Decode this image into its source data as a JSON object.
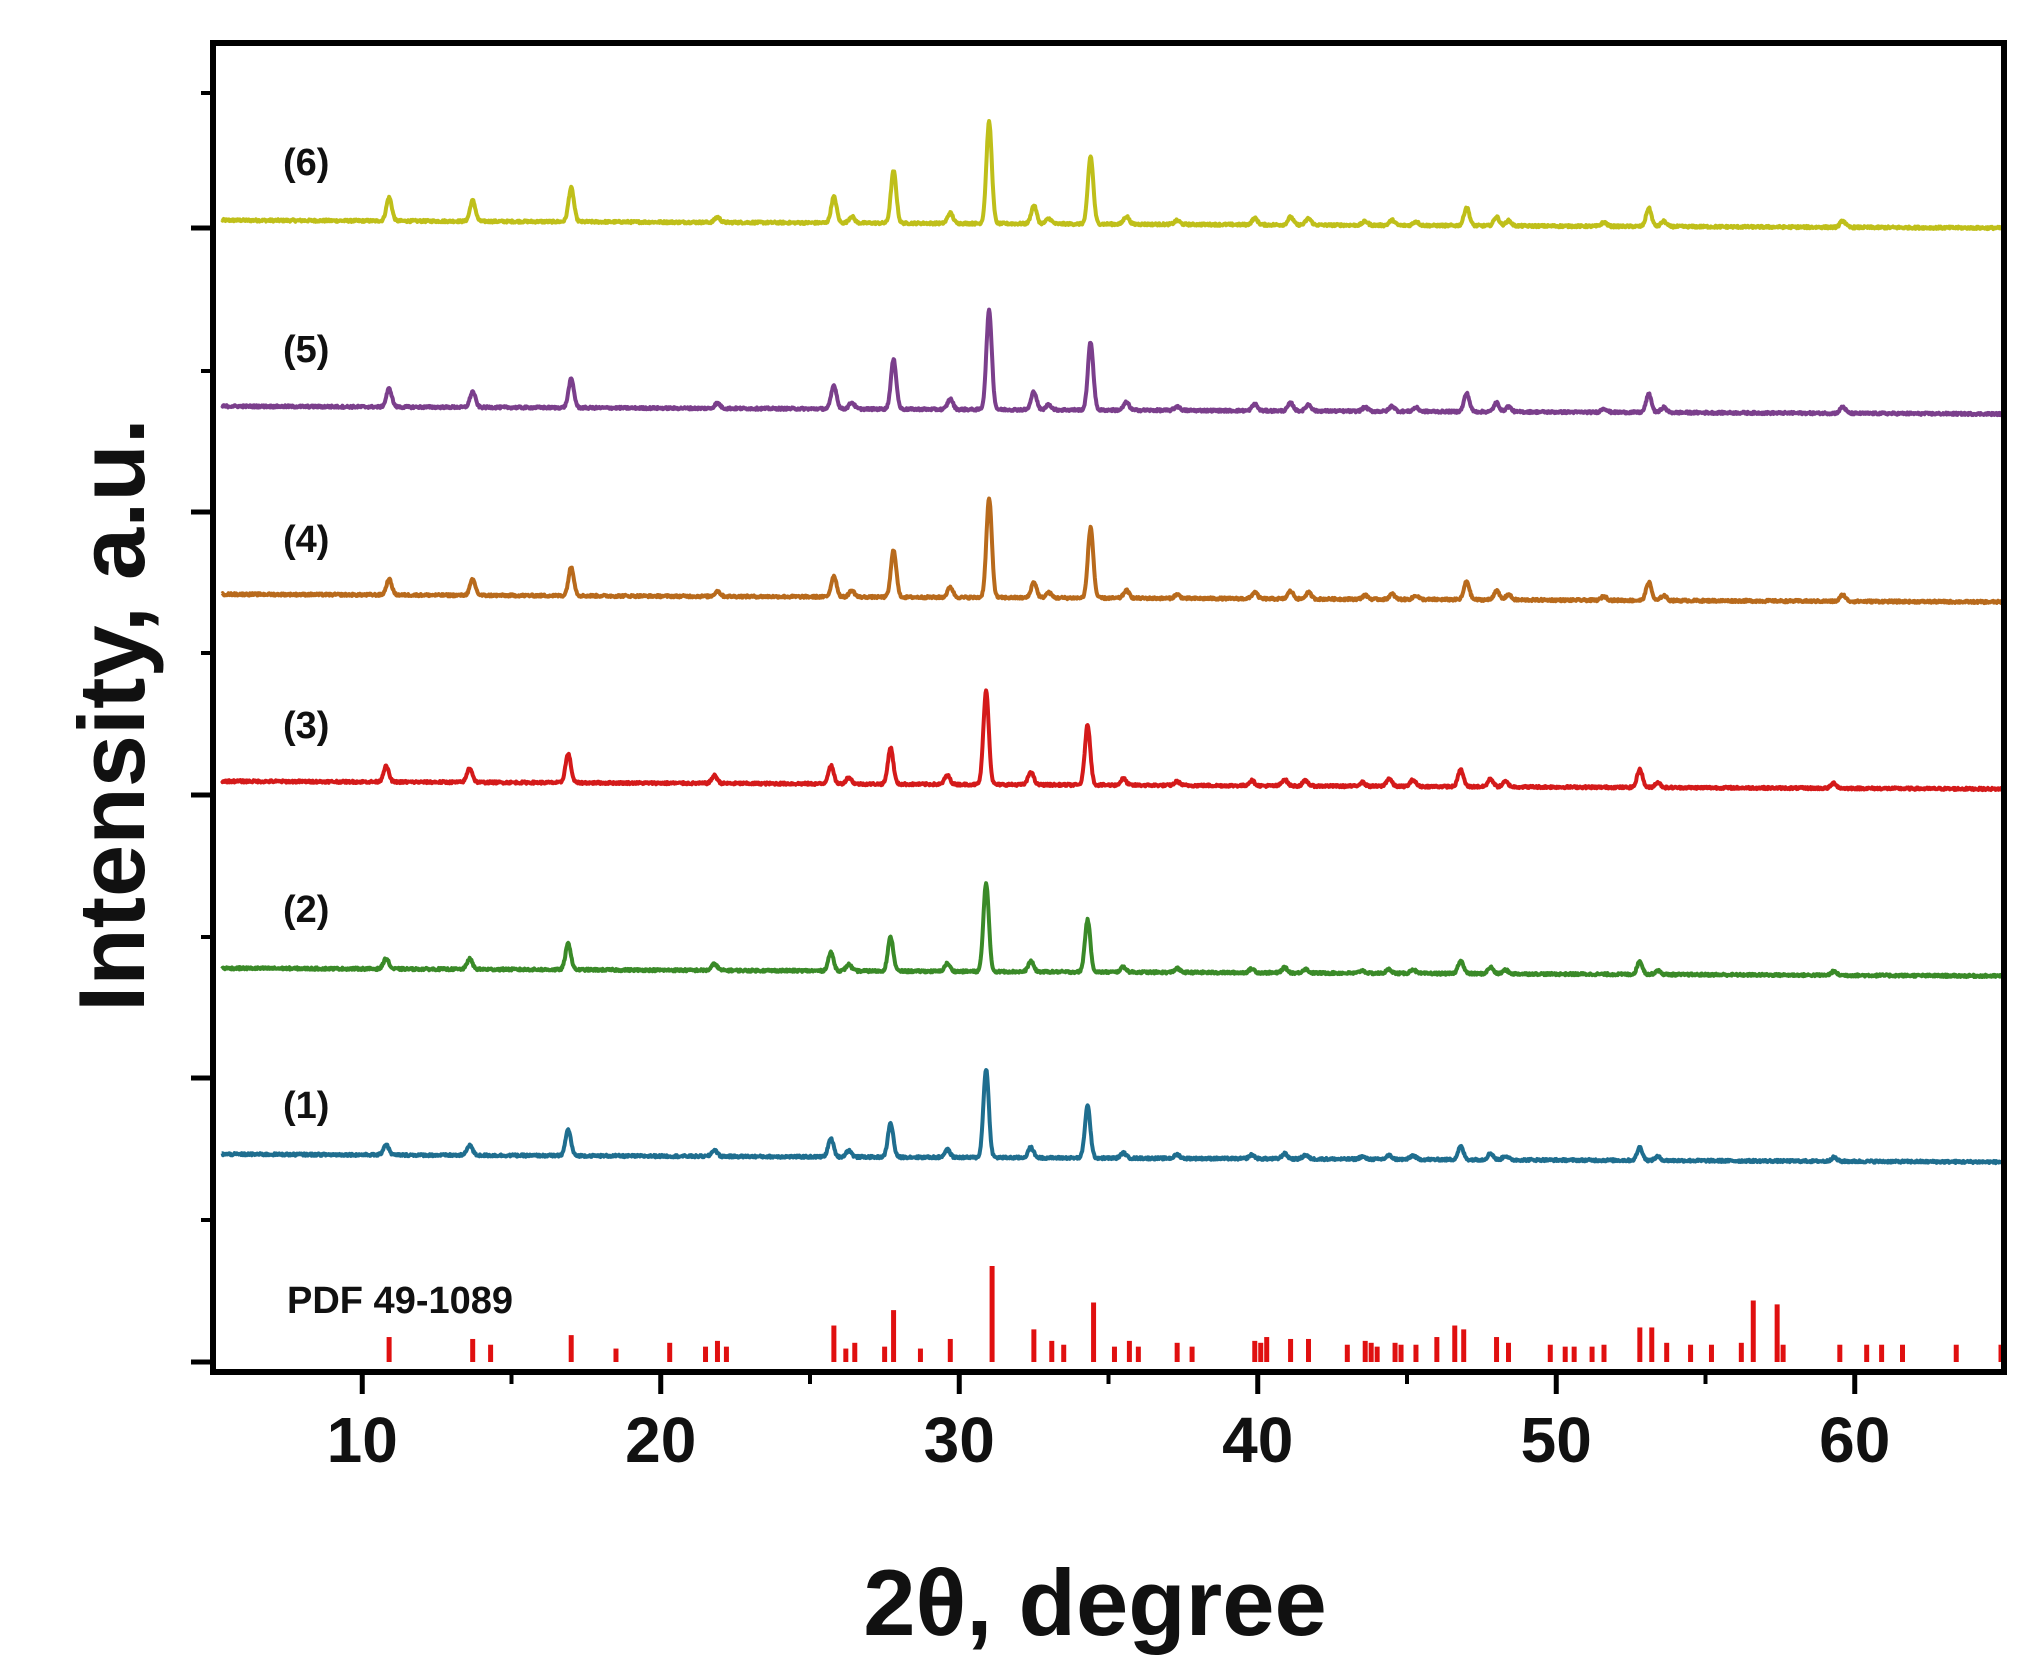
{
  "chart_data": {
    "type": "line",
    "title": "",
    "xlabel": "2θ, degree",
    "ylabel": "Intensity, a.u.",
    "xlim": [
      5,
      65
    ],
    "xticks": [
      10,
      20,
      30,
      40,
      50,
      60
    ],
    "yticks_labeled": false,
    "grid": false,
    "series": [
      {
        "name": "(6)",
        "color": "#BFBF1A",
        "baseline_start": 0.06,
        "baseline_end": 0.0,
        "peaks": [
          [
            10.9,
            0.18
          ],
          [
            13.7,
            0.16
          ],
          [
            17.0,
            0.26
          ],
          [
            21.9,
            0.04
          ],
          [
            25.8,
            0.2
          ],
          [
            26.4,
            0.05
          ],
          [
            27.8,
            0.4
          ],
          [
            29.7,
            0.08
          ],
          [
            31.0,
            0.78
          ],
          [
            32.5,
            0.14
          ],
          [
            33.0,
            0.04
          ],
          [
            34.4,
            0.52
          ],
          [
            35.6,
            0.06
          ],
          [
            37.3,
            0.03
          ],
          [
            39.9,
            0.05
          ],
          [
            41.1,
            0.06
          ],
          [
            41.7,
            0.05
          ],
          [
            43.6,
            0.03
          ],
          [
            44.5,
            0.04
          ],
          [
            45.3,
            0.03
          ],
          [
            47.0,
            0.14
          ],
          [
            48.0,
            0.07
          ],
          [
            48.4,
            0.04
          ],
          [
            51.6,
            0.03
          ],
          [
            53.1,
            0.14
          ],
          [
            53.6,
            0.04
          ],
          [
            59.6,
            0.05
          ]
        ]
      },
      {
        "name": "(5)",
        "color": "#7B3F8C",
        "baseline_start": 0.06,
        "baseline_end": 0.0,
        "peaks": [
          [
            10.9,
            0.14
          ],
          [
            13.7,
            0.12
          ],
          [
            17.0,
            0.22
          ],
          [
            21.9,
            0.04
          ],
          [
            25.8,
            0.18
          ],
          [
            26.4,
            0.05
          ],
          [
            27.8,
            0.38
          ],
          [
            29.7,
            0.08
          ],
          [
            31.0,
            0.76
          ],
          [
            32.5,
            0.14
          ],
          [
            33.0,
            0.04
          ],
          [
            34.4,
            0.52
          ],
          [
            35.6,
            0.06
          ],
          [
            37.3,
            0.03
          ],
          [
            39.9,
            0.05
          ],
          [
            41.1,
            0.06
          ],
          [
            41.7,
            0.05
          ],
          [
            43.6,
            0.03
          ],
          [
            44.5,
            0.04
          ],
          [
            45.3,
            0.03
          ],
          [
            47.0,
            0.14
          ],
          [
            48.0,
            0.07
          ],
          [
            48.4,
            0.04
          ],
          [
            51.6,
            0.03
          ],
          [
            53.1,
            0.14
          ],
          [
            53.6,
            0.04
          ],
          [
            59.6,
            0.05
          ]
        ]
      },
      {
        "name": "(4)",
        "color": "#B86A1C",
        "baseline_start": 0.06,
        "baseline_end": 0.0,
        "peaks": [
          [
            10.9,
            0.12
          ],
          [
            13.7,
            0.12
          ],
          [
            17.0,
            0.22
          ],
          [
            21.9,
            0.04
          ],
          [
            25.8,
            0.16
          ],
          [
            26.4,
            0.05
          ],
          [
            27.8,
            0.36
          ],
          [
            29.7,
            0.08
          ],
          [
            31.0,
            0.76
          ],
          [
            32.5,
            0.12
          ],
          [
            33.0,
            0.04
          ],
          [
            34.4,
            0.54
          ],
          [
            35.6,
            0.06
          ],
          [
            37.3,
            0.03
          ],
          [
            39.9,
            0.05
          ],
          [
            41.1,
            0.06
          ],
          [
            41.7,
            0.05
          ],
          [
            43.6,
            0.03
          ],
          [
            44.5,
            0.04
          ],
          [
            45.3,
            0.03
          ],
          [
            47.0,
            0.14
          ],
          [
            48.0,
            0.07
          ],
          [
            48.4,
            0.04
          ],
          [
            51.6,
            0.03
          ],
          [
            53.1,
            0.14
          ],
          [
            53.6,
            0.04
          ],
          [
            59.6,
            0.05
          ]
        ]
      },
      {
        "name": "(3)",
        "color": "#D41A1A",
        "baseline_start": 0.06,
        "baseline_end": 0.0,
        "peaks": [
          [
            10.8,
            0.12
          ],
          [
            13.6,
            0.11
          ],
          [
            16.9,
            0.22
          ],
          [
            21.8,
            0.06
          ],
          [
            25.7,
            0.14
          ],
          [
            26.3,
            0.05
          ],
          [
            27.7,
            0.28
          ],
          [
            29.6,
            0.07
          ],
          [
            30.9,
            0.72
          ],
          [
            32.4,
            0.1
          ],
          [
            34.3,
            0.46
          ],
          [
            35.5,
            0.05
          ],
          [
            37.3,
            0.03
          ],
          [
            39.8,
            0.04
          ],
          [
            40.9,
            0.05
          ],
          [
            41.6,
            0.04
          ],
          [
            43.5,
            0.03
          ],
          [
            44.4,
            0.06
          ],
          [
            45.2,
            0.05
          ],
          [
            46.8,
            0.13
          ],
          [
            47.8,
            0.06
          ],
          [
            48.3,
            0.04
          ],
          [
            52.8,
            0.14
          ],
          [
            53.4,
            0.04
          ],
          [
            59.3,
            0.04
          ]
        ]
      },
      {
        "name": "(2)",
        "color": "#3A8A28",
        "baseline_start": 0.06,
        "baseline_end": 0.0,
        "peaks": [
          [
            10.8,
            0.08
          ],
          [
            13.6,
            0.08
          ],
          [
            16.9,
            0.2
          ],
          [
            21.8,
            0.05
          ],
          [
            25.7,
            0.14
          ],
          [
            26.3,
            0.05
          ],
          [
            27.7,
            0.26
          ],
          [
            29.6,
            0.06
          ],
          [
            30.9,
            0.68
          ],
          [
            32.4,
            0.08
          ],
          [
            34.3,
            0.4
          ],
          [
            35.5,
            0.04
          ],
          [
            37.3,
            0.03
          ],
          [
            39.8,
            0.03
          ],
          [
            40.9,
            0.04
          ],
          [
            41.6,
            0.03
          ],
          [
            43.5,
            0.02
          ],
          [
            44.4,
            0.03
          ],
          [
            45.2,
            0.03
          ],
          [
            46.8,
            0.1
          ],
          [
            47.8,
            0.05
          ],
          [
            48.3,
            0.03
          ],
          [
            52.8,
            0.1
          ],
          [
            53.4,
            0.03
          ],
          [
            59.3,
            0.03
          ]
        ]
      },
      {
        "name": "(1)",
        "color": "#1F6E8F",
        "baseline_start": 0.06,
        "baseline_end": 0.0,
        "peaks": [
          [
            10.8,
            0.08
          ],
          [
            13.6,
            0.08
          ],
          [
            16.9,
            0.2
          ],
          [
            21.8,
            0.05
          ],
          [
            25.7,
            0.14
          ],
          [
            26.3,
            0.05
          ],
          [
            27.7,
            0.26
          ],
          [
            29.6,
            0.06
          ],
          [
            30.9,
            0.68
          ],
          [
            32.4,
            0.08
          ],
          [
            34.3,
            0.4
          ],
          [
            35.5,
            0.04
          ],
          [
            37.3,
            0.03
          ],
          [
            39.8,
            0.03
          ],
          [
            40.9,
            0.04
          ],
          [
            41.6,
            0.03
          ],
          [
            43.5,
            0.02
          ],
          [
            44.4,
            0.03
          ],
          [
            45.2,
            0.03
          ],
          [
            46.8,
            0.1
          ],
          [
            47.8,
            0.05
          ],
          [
            48.3,
            0.03
          ],
          [
            52.8,
            0.1
          ],
          [
            53.4,
            0.03
          ],
          [
            59.3,
            0.03
          ]
        ]
      }
    ],
    "reference": {
      "name": "PDF 49-1089",
      "color": "#E01010",
      "lines": [
        [
          10.9,
          0.26
        ],
        [
          13.7,
          0.24
        ],
        [
          14.3,
          0.18
        ],
        [
          17.0,
          0.28
        ],
        [
          18.5,
          0.14
        ],
        [
          20.3,
          0.2
        ],
        [
          21.5,
          0.16
        ],
        [
          21.9,
          0.22
        ],
        [
          22.2,
          0.16
        ],
        [
          25.8,
          0.38
        ],
        [
          26.2,
          0.14
        ],
        [
          26.5,
          0.2
        ],
        [
          27.5,
          0.16
        ],
        [
          27.8,
          0.54
        ],
        [
          28.7,
          0.14
        ],
        [
          29.7,
          0.24
        ],
        [
          31.1,
          1.0
        ],
        [
          32.5,
          0.34
        ],
        [
          33.1,
          0.22
        ],
        [
          33.5,
          0.18
        ],
        [
          34.5,
          0.62
        ],
        [
          35.2,
          0.16
        ],
        [
          35.7,
          0.22
        ],
        [
          36.0,
          0.16
        ],
        [
          37.3,
          0.2
        ],
        [
          37.8,
          0.16
        ],
        [
          39.9,
          0.22
        ],
        [
          40.1,
          0.2
        ],
        [
          40.3,
          0.26
        ],
        [
          41.1,
          0.24
        ],
        [
          41.7,
          0.24
        ],
        [
          43.0,
          0.18
        ],
        [
          43.6,
          0.22
        ],
        [
          43.8,
          0.2
        ],
        [
          44.0,
          0.16
        ],
        [
          44.6,
          0.2
        ],
        [
          44.8,
          0.18
        ],
        [
          45.3,
          0.18
        ],
        [
          46.0,
          0.26
        ],
        [
          46.6,
          0.38
        ],
        [
          46.9,
          0.34
        ],
        [
          48.0,
          0.26
        ],
        [
          48.4,
          0.2
        ],
        [
          49.8,
          0.18
        ],
        [
          50.3,
          0.16
        ],
        [
          50.6,
          0.16
        ],
        [
          51.2,
          0.16
        ],
        [
          51.6,
          0.18
        ],
        [
          52.8,
          0.36
        ],
        [
          53.2,
          0.36
        ],
        [
          53.7,
          0.2
        ],
        [
          54.5,
          0.18
        ],
        [
          55.2,
          0.18
        ],
        [
          56.2,
          0.2
        ],
        [
          56.6,
          0.64
        ],
        [
          57.4,
          0.6
        ],
        [
          57.6,
          0.18
        ],
        [
          59.5,
          0.18
        ],
        [
          60.4,
          0.18
        ],
        [
          60.9,
          0.18
        ],
        [
          61.6,
          0.18
        ],
        [
          63.4,
          0.18
        ],
        [
          64.9,
          0.18
        ]
      ]
    }
  }
}
